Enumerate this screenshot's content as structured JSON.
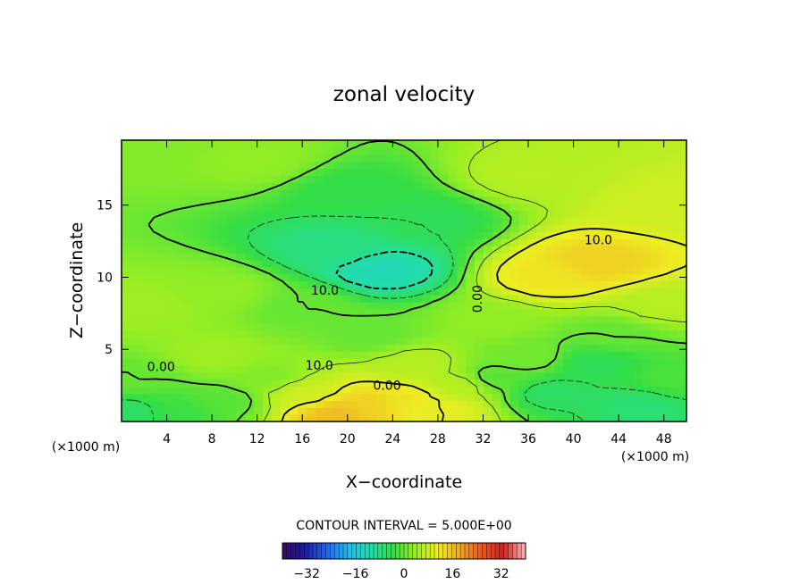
{
  "chart_data": {
    "type": "heatmap",
    "title": "zonal velocity",
    "xlabel": "X−coordinate",
    "ylabel": "Z−coordinate",
    "x_unit": "(×1000 m)",
    "x_unit_right": "(×1000 m)",
    "xlim": [
      0,
      50
    ],
    "ylim": [
      0,
      19.5
    ],
    "x_ticks": [
      4,
      8,
      12,
      16,
      20,
      24,
      28,
      32,
      36,
      40,
      44,
      48
    ],
    "y_ticks": [
      5,
      10,
      15
    ],
    "contour_interval_label": "CONTOUR INTERVAL = 5.000E+00",
    "contour_labels": [
      "0.00",
      "10.0",
      "0.00",
      "10.0",
      "10.0",
      "0.00"
    ],
    "colorbar": {
      "range": [
        -40,
        40
      ],
      "ticks": [
        -32,
        -16,
        0,
        16,
        32
      ],
      "tick_labels": [
        "−32",
        "−16",
        "0",
        "16",
        "32"
      ],
      "colors": [
        "#3a0a5a",
        "#1a1aa0",
        "#2266ee",
        "#22bbee",
        "#22ddaa",
        "#33dd44",
        "#99ee22",
        "#eeee22",
        "#eeaa22",
        "#ee5522",
        "#cc2222",
        "#ffbbbb"
      ]
    },
    "field_anchors": [
      {
        "x": 2,
        "z": 19,
        "u": 2
      },
      {
        "x": 12,
        "z": 18,
        "u": 3
      },
      {
        "x": 20,
        "z": 16,
        "u": -4
      },
      {
        "x": 23,
        "z": 10.5,
        "u": -12
      },
      {
        "x": 19,
        "z": 12,
        "u": -8
      },
      {
        "x": 27,
        "z": 14,
        "u": -5
      },
      {
        "x": 36,
        "z": 17,
        "u": 6
      },
      {
        "x": 42,
        "z": 11,
        "u": 14
      },
      {
        "x": 38,
        "z": 10,
        "u": 12
      },
      {
        "x": 48,
        "z": 15,
        "u": 8
      },
      {
        "x": 48,
        "z": 8,
        "u": 6
      },
      {
        "x": 33,
        "z": 7,
        "u": 3
      },
      {
        "x": 22,
        "z": 6,
        "u": 0
      },
      {
        "x": 9,
        "z": 9,
        "u": 3
      },
      {
        "x": 2,
        "z": 8,
        "u": 4
      },
      {
        "x": 2,
        "z": 3,
        "u": 0
      },
      {
        "x": 1,
        "z": 0.6,
        "u": -6
      },
      {
        "x": 5,
        "z": 0.8,
        "u": -3
      },
      {
        "x": 9,
        "z": 1.5,
        "u": -1
      },
      {
        "x": 13,
        "z": 3,
        "u": 2
      },
      {
        "x": 16,
        "z": 2,
        "u": 8
      },
      {
        "x": 19,
        "z": 0.6,
        "u": 16
      },
      {
        "x": 22,
        "z": 1.2,
        "u": 14
      },
      {
        "x": 25,
        "z": 1.5,
        "u": 12
      },
      {
        "x": 28,
        "z": 1,
        "u": 10
      },
      {
        "x": 30,
        "z": 2.5,
        "u": 6
      },
      {
        "x": 33,
        "z": 3,
        "u": -1
      },
      {
        "x": 38,
        "z": 2,
        "u": -6
      },
      {
        "x": 42,
        "z": 4,
        "u": -5
      },
      {
        "x": 46,
        "z": 1,
        "u": -7
      },
      {
        "x": 49,
        "z": 3,
        "u": -2
      },
      {
        "x": 44,
        "z": 6,
        "u": 0
      },
      {
        "x": 36,
        "z": 4.5,
        "u": 1
      },
      {
        "x": 26,
        "z": 4,
        "u": 6
      },
      {
        "x": 8,
        "z": 4.5,
        "u": 4
      },
      {
        "x": 16,
        "z": 8,
        "u": 0
      }
    ]
  }
}
